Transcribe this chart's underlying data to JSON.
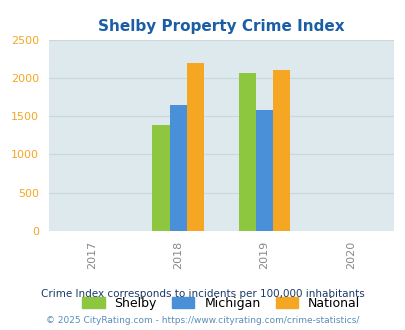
{
  "title": "Shelby Property Crime Index",
  "years": [
    2017,
    2018,
    2019,
    2020
  ],
  "bar_years": [
    2018,
    2019
  ],
  "shelby": [
    1390,
    2060
  ],
  "michigan": [
    1640,
    1580
  ],
  "national": [
    2200,
    2100
  ],
  "shelby_color": "#8DC63F",
  "michigan_color": "#4A90D9",
  "national_color": "#F5A623",
  "ylim": [
    0,
    2500
  ],
  "yticks": [
    0,
    500,
    1000,
    1500,
    2000,
    2500
  ],
  "background_color": "#DDE9EC",
  "legend_labels": [
    "Shelby",
    "Michigan",
    "National"
  ],
  "subtitle": "Crime Index corresponds to incidents per 100,000 inhabitants",
  "footer": "© 2025 CityRating.com - https://www.cityrating.com/crime-statistics/",
  "title_color": "#1B5EA6",
  "subtitle_color": "#1B3A6B",
  "footer_color": "#5B8DB8",
  "ytick_color": "#F5A623",
  "xtick_color": "#888888",
  "grid_color": "#C8D8DC"
}
